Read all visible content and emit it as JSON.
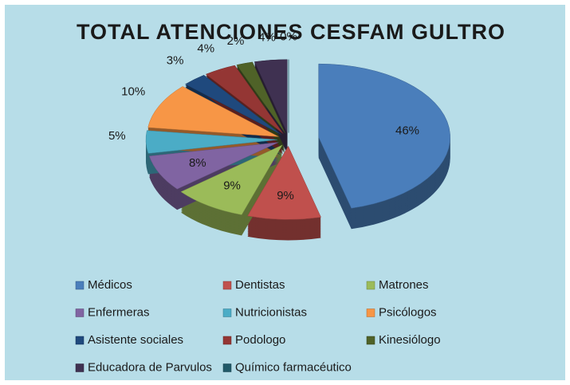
{
  "chart_data": {
    "type": "pie",
    "title": "TOTAL ATENCIONES CESFAM GULTRO",
    "categories": [
      "Médicos",
      "Dentistas",
      "Matrones",
      "Enfermeras",
      "Nutricionistas",
      "Psicólogos",
      "Asistente sociales",
      "Podologo",
      "Kinesiólogo",
      "Educadora de Parvulos",
      "Químico farmacéutico"
    ],
    "values": [
      46,
      9,
      9,
      8,
      5,
      10,
      3,
      4,
      2,
      4,
      0
    ],
    "value_labels": [
      "46%",
      "9%",
      "9%",
      "8%",
      "5%",
      "10%",
      "3%",
      "4%",
      "2%",
      "4%",
      "0%"
    ],
    "colors": [
      "#4a7ebb",
      "#c0504d",
      "#9bbb59",
      "#8064a2",
      "#4bacc6",
      "#f79646",
      "#1f497d",
      "#943634",
      "#4f6228",
      "#3f3151",
      "#215968"
    ],
    "legend": "bottom"
  }
}
